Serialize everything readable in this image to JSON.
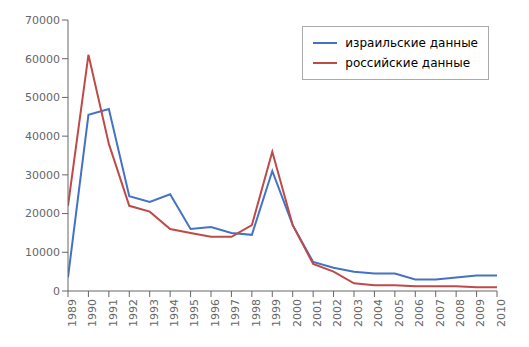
{
  "chart_data": {
    "type": "line",
    "x": [
      1989,
      1990,
      1991,
      1992,
      1993,
      1994,
      1995,
      1996,
      1997,
      1998,
      1999,
      2000,
      2001,
      2002,
      2003,
      2004,
      2005,
      2006,
      2007,
      2008,
      2009,
      2010
    ],
    "series": [
      {
        "name": "израильские данные",
        "color": "#4472c4",
        "values": [
          3500,
          45500,
          47000,
          24500,
          23000,
          25000,
          16000,
          16500,
          15000,
          14500,
          31000,
          17000,
          7500,
          6000,
          5000,
          4500,
          4500,
          3000,
          3000,
          3500,
          4000,
          4000
        ]
      },
      {
        "name": "российские данные",
        "color": "#be4b48",
        "values": [
          22000,
          61000,
          38000,
          22000,
          20500,
          16000,
          15000,
          14000,
          14000,
          17000,
          36000,
          17000,
          7000,
          5000,
          2000,
          1500,
          1500,
          1200,
          1200,
          1200,
          1000,
          1000
        ]
      }
    ],
    "xlim": [
      1989,
      2010
    ],
    "xticks": [
      1989,
      1990,
      1991,
      1992,
      1993,
      1994,
      1995,
      1996,
      1997,
      1998,
      1999,
      2000,
      2001,
      2002,
      2003,
      2004,
      2005,
      2006,
      2007,
      2008,
      2009,
      2010
    ],
    "ylim": [
      0,
      70000
    ],
    "yticks": [
      0,
      10000,
      20000,
      30000,
      40000,
      50000,
      60000,
      70000
    ],
    "legend": "upper right",
    "grid": false
  }
}
